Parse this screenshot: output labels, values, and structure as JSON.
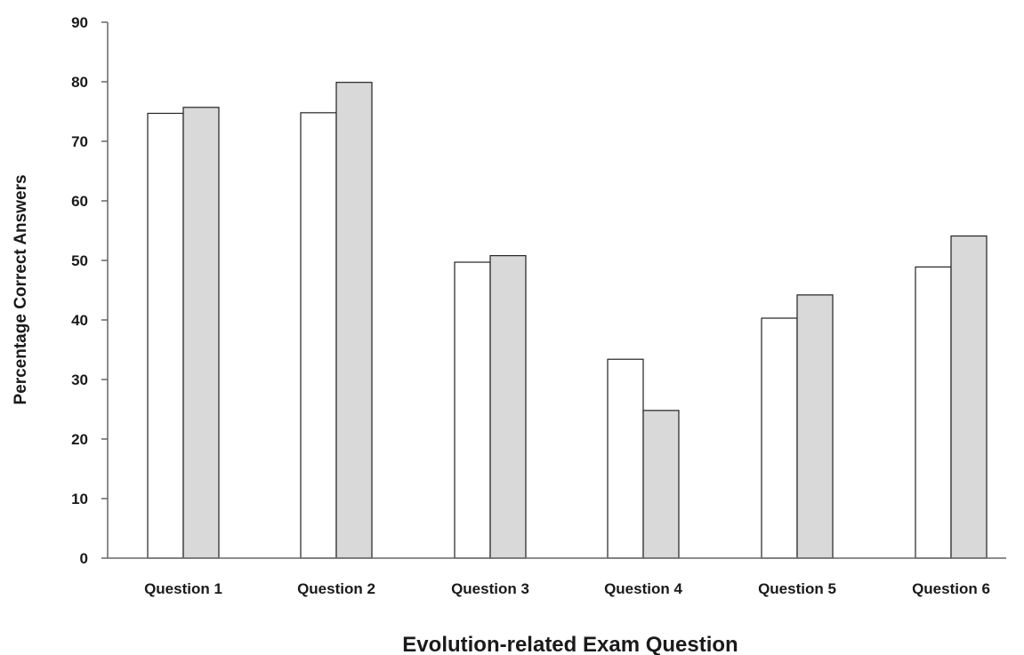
{
  "chart_data": {
    "type": "bar",
    "title": "",
    "xlabel": "Evolution-related Exam Question",
    "ylabel": "Percentage Correct Answers",
    "ylim": [
      0,
      90
    ],
    "yticks": [
      "0",
      "10",
      "20",
      "30",
      "40",
      "50",
      "60",
      "70",
      "80",
      "90"
    ],
    "categories": [
      "Question 1",
      "Question 2",
      "Question 3",
      "Question 4",
      "Question 5",
      "Question 6"
    ],
    "series": [
      {
        "values": [
          74.7,
          74.8,
          49.7,
          33.4,
          40.3,
          48.9
        ],
        "color": "#ffffff"
      },
      {
        "values": [
          75.7,
          79.9,
          50.8,
          24.8,
          44.2,
          54.1
        ],
        "color": "#d9d9d9"
      }
    ],
    "grid": false,
    "legend": "none"
  }
}
